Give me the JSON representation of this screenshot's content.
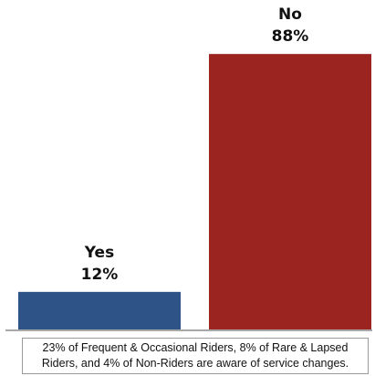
{
  "chart_data": {
    "type": "bar",
    "categories": [
      "Yes",
      "No"
    ],
    "values": [
      12,
      88
    ],
    "value_labels": [
      "12%",
      "88%"
    ],
    "colors": [
      "#2E5387",
      "#9B2421"
    ],
    "ylim": [
      0,
      100
    ],
    "grid": false,
    "legend": "none",
    "title": "",
    "xlabel": "",
    "ylabel": ""
  },
  "note": {
    "line1": "23% of Frequent & Occasional Riders, 8% of Rare & Lapsed",
    "line2": "Riders, and 4% of Non-Riders are aware of service changes."
  }
}
